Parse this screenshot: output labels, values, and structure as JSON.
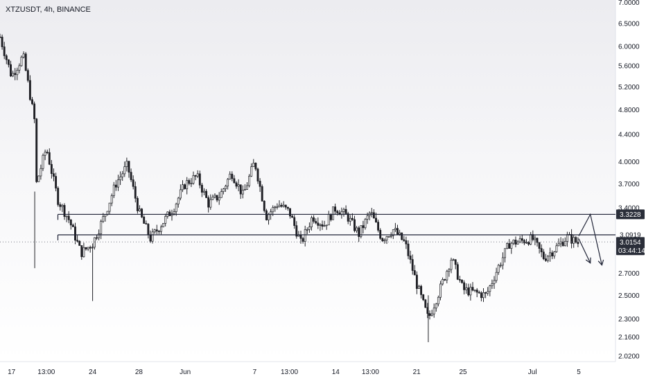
{
  "header": {
    "symbol": "XTZUSDT, 4h, BINANCE"
  },
  "chart_data": {
    "type": "candlestick",
    "title": "XTZUSDT, 4h, BINANCE",
    "yscale": "log",
    "ylim": [
      1.98,
      7.06
    ],
    "y_ticks": [
      "7.0000",
      "6.5000",
      "6.0000",
      "5.6000",
      "5.2000",
      "4.8000",
      "4.4000",
      "4.0000",
      "3.7000",
      "3.4000",
      "3.0919",
      "2.7000",
      "2.5000",
      "2.3000",
      "2.1600",
      "2.0200"
    ],
    "x_ticks": [
      "17",
      "13:00",
      "24",
      "28",
      "Jun",
      "7",
      "13:00",
      "14",
      "13:00",
      "21",
      "25",
      "Jul",
      "5"
    ],
    "levels": [
      {
        "name": "resistance",
        "value": 3.3228,
        "label": "3.3228",
        "start_date": "May 21"
      },
      {
        "name": "support",
        "value": 3.0919,
        "label": "3.0919",
        "start_date": "May 21"
      }
    ],
    "last_price": {
      "label": "3.0154",
      "countdown": "03:44:14"
    },
    "path": [
      [
        "May 16",
        6.2
      ],
      [
        "May 17",
        5.4
      ],
      [
        "May 18",
        5.8
      ],
      [
        "May 19",
        4.6
      ],
      [
        "May 19",
        2.85
      ],
      [
        "May 19",
        3.7
      ],
      [
        "May 20",
        4.2
      ],
      [
        "May 21",
        3.5
      ],
      [
        "May 22",
        3.25
      ],
      [
        "May 23",
        2.9
      ],
      [
        "May 24",
        3.0
      ],
      [
        "May 25",
        3.3
      ],
      [
        "May 26",
        3.7
      ],
      [
        "May 27",
        3.95
      ],
      [
        "May 28",
        3.35
      ],
      [
        "May 29",
        3.05
      ],
      [
        "May 31",
        3.4
      ],
      [
        "Jun 1",
        3.7
      ],
      [
        "Jun 2",
        3.8
      ],
      [
        "Jun 3",
        3.45
      ],
      [
        "Jun 4",
        3.55
      ],
      [
        "Jun 5",
        3.85
      ],
      [
        "Jun 6",
        3.55
      ],
      [
        "Jun 7",
        4.0
      ],
      [
        "Jun 8",
        3.3
      ],
      [
        "Jun 9",
        3.45
      ],
      [
        "Jun 10",
        3.35
      ],
      [
        "Jun 11",
        3.0
      ],
      [
        "Jun 12",
        3.3
      ],
      [
        "Jun 13",
        3.2
      ],
      [
        "Jun 14",
        3.4
      ],
      [
        "Jun 15",
        3.3
      ],
      [
        "Jun 16",
        3.1
      ],
      [
        "Jun 17",
        3.35
      ],
      [
        "Jun 18",
        3.05
      ],
      [
        "Jun 19",
        3.15
      ],
      [
        "Jun 20",
        3.0
      ],
      [
        "Jun 21",
        2.6
      ],
      [
        "Jun 22",
        2.3
      ],
      [
        "Jun 23",
        2.55
      ],
      [
        "Jun 24",
        2.85
      ],
      [
        "Jun 25",
        2.55
      ],
      [
        "Jun 27",
        2.5
      ],
      [
        "Jun 28",
        2.75
      ],
      [
        "Jun 29",
        3.0
      ],
      [
        "Jul 1",
        3.05
      ],
      [
        "Jul 2",
        2.85
      ],
      [
        "Jul 3",
        2.95
      ],
      [
        "Jul 4",
        3.07
      ],
      [
        "Jul 5",
        3.0
      ]
    ],
    "projection": [
      [
        "Jul 5",
        3.08
      ],
      [
        "Jul 6",
        3.3228
      ],
      [
        "Jul 7",
        2.78
      ]
    ],
    "projection_alt": [
      [
        "Jul 5",
        3.05
      ],
      [
        "Jul 6",
        2.8
      ]
    ]
  },
  "colors": {
    "bull": "#26a69a",
    "bear": "#ef5350",
    "candle": "#1e1f24",
    "level_line": "#1e2235",
    "price_tag": "#2a2e39",
    "last_price_line": "#787b86"
  }
}
